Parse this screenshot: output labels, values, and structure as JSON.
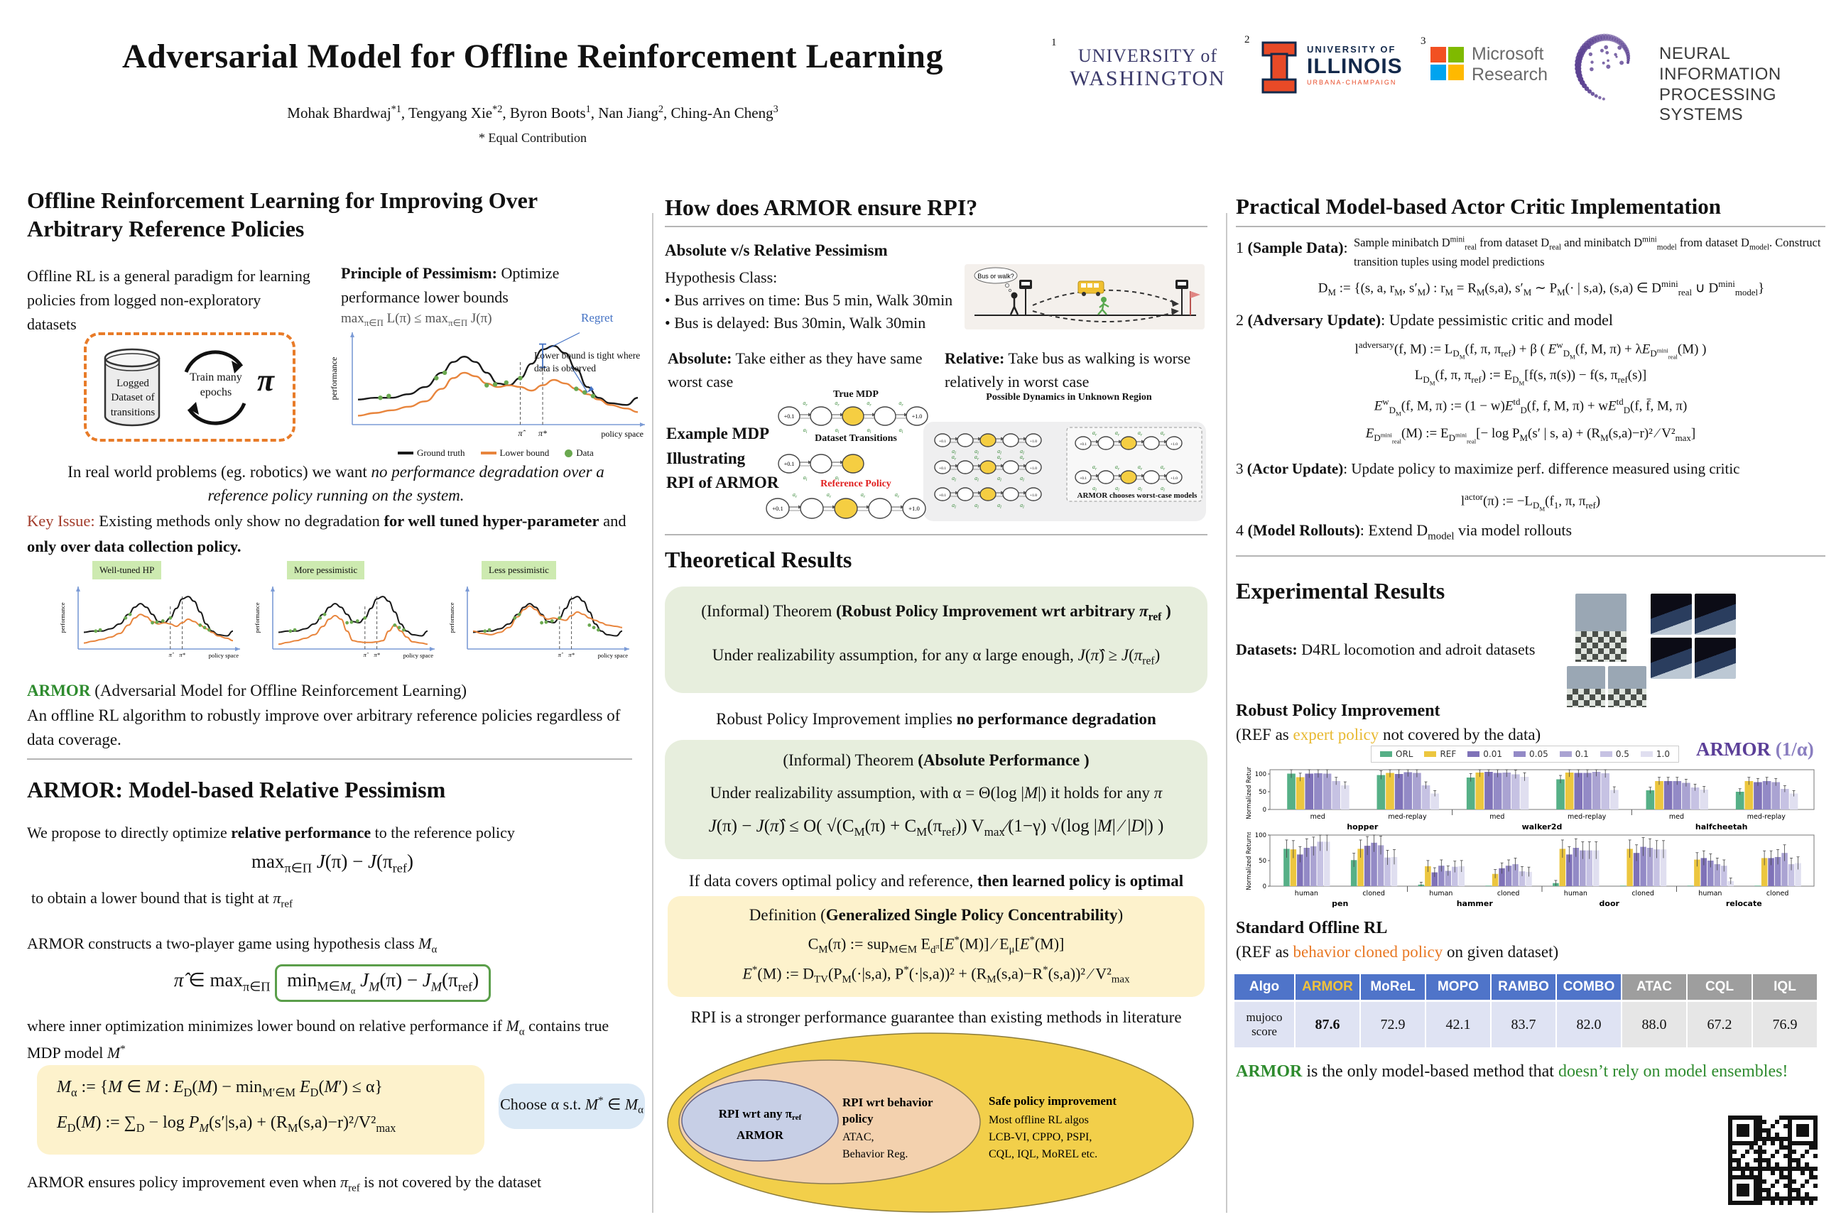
{
  "colors": {
    "armor_green": "#2e8b2e",
    "key_issue_red": "#a23b2a",
    "reference_policy_red": "#e02020",
    "expert_policy_gold": "#e8b931",
    "behavior_cloned_orange": "#e87722",
    "armor_purple": "#5b3f98",
    "table_header_blue": "#4f74c9",
    "table_header_gray": "#9e9e9e",
    "theorem_green_bg": "#e7eedd",
    "definition_yellow_bg": "#fdf2cc",
    "choose_blue_bg": "#dbe9f6",
    "dashed_box_orange": "#e87b28",
    "lower_bound_orange": "#e8853d",
    "data_dot_green": "#6aa84f"
  },
  "header": {
    "title": "Adversarial Model for Offline Reinforcement Learning",
    "authors_html": "Mohak Bhardwaj<sup>*1</sup>, Tengyang Xie<sup>*2</sup>, Byron Boots<sup>1</sup>, Nan Jiang<sup>2</sup>, Ching-An Cheng<sup>3</sup>",
    "equal": "* Equal Contribution"
  },
  "logos": {
    "uw_sup": "1",
    "uw1": "UNIVERSITY of",
    "uw2": "WASHINGTON",
    "il_sup": "2",
    "il1": "UNIVERSITY OF",
    "il2": "ILLINOIS",
    "il3": "URBANA-CHAMPAIGN",
    "ms_sup": "3",
    "ms1": "Microsoft",
    "ms2": "Research",
    "nips1": "NEURAL INFORMATION",
    "nips2": "PROCESSING SYSTEMS"
  },
  "left": {
    "heading1": "Offline Reinforcement Learning for Improving Over Arbitrary Reference Policies",
    "intro": "Offline RL is a general paradigm for learning policies from logged non-exploratory datasets",
    "box": {
      "cyl1": "Logged",
      "cyl2": "Dataset of",
      "cyl3": "transitions",
      "train1": "Train many",
      "train2": "epochs",
      "pi": "π"
    },
    "principle_b": "Principle of Pessimism:",
    "principle_r": " Optimize performance lower bounds",
    "principle_math_html": "max<sub>π∈Π</sub> L(π) ≤ max<sub>π∈Π</sub> J(π)",
    "regret": "Regret",
    "tight_note": "Lower bound is tight where data is observed",
    "plot": {
      "ylabel": "performance",
      "xlabel": "policy space",
      "xhat": "π̂",
      "xstar": "π*",
      "leg_gt": "Ground truth",
      "leg_lb": "Lower bound",
      "leg_data": "Data"
    },
    "realworld_html": "In real world problems (eg. robotics) we want <i>no performance degradation over a</i><br><i>reference policy running on the system.</i>",
    "key_label": "Key Issue:",
    "key_html": " Existing methods only show no degradation <b>for well tuned hyper-parameter</b> and <b>only over data collection policy.</b>",
    "mini_labels": [
      "Well-tuned HP",
      "More pessimistic",
      "Less pessimistic"
    ],
    "armor_name": "ARMOR",
    "armor_paren": " (Adversarial Model for Offline Reinforcement Learning)",
    "armor_desc": "An offline RL algorithm to robustly improve over arbitrary reference policies regardless of data coverage.",
    "heading2": "ARMOR: Model-based Relative Pessimism",
    "p1_html": "We propose to directly optimize <b>relative performance</b> to the reference policy",
    "eq1_html": "max<sub>π∈Π</sub> <i>J</i>(π) − <i>J</i>(π<sub>ref</sub>)",
    "p2_html": "to obtain a lower bound that is tight at <i>π</i><sub>ref</sub>",
    "p3_html": "ARMOR constructs a two-player game using hypothesis class <i>M</i><sub>α</sub>",
    "eq2_pre_html": "<i>π̂</i> ∈ max<sub>π∈Π</sub> ",
    "eq2_box_html": "min<sub>M∈<i>M</i><sub>α</sub></sub> <i>J<sub>M</sub></i>(π) − <i>J<sub>M</sub></i>(π<sub>ref</sub>)",
    "p4_html": "where inner optimization minimizes lower bound on relative performance if <i>M</i><sub>α</sub> contains true MDP model <i>M</i><sup>*</sup>",
    "ybox1_html": "<i>M</i><sub>α</sub> := {<i>M</i> ∈ <i>M</i> : <i>E</i><sub>D</sub>(<i>M</i>) − min<sub>M′∈M</sub> <i>E</i><sub>D</sub>(<i>M</i>′) ≤ α}",
    "ybox2_html": "<i>E</i><sub>D</sub>(<i>M</i>) := ∑<sub>D</sub> − log <i>P<sub>M</sub></i>(s′|s,a) + (R<sub>M</sub>(s,a)−r)²/V²<sub>max</sub>",
    "bluebox_html": "Choose α  s.t.  <i>M</i><sup>*</sup> ∈ <i>M</i><sub>α</sub>",
    "footer_html": "ARMOR ensures policy improvement even when <i>π</i><sub>ref</sub> is not covered by the dataset"
  },
  "middle": {
    "heading": "How does ARMOR ensure RPI?",
    "absrel": "Absolute v/s Relative Pessimism",
    "hyp": "Hypothesis Class:",
    "bullet": "•",
    "b1": "Bus arrives on time: Bus 5 min, Walk 30min",
    "b2": "Bus is delayed: Bus 30min, Walk 30min",
    "bus_thought": "Bus or walk?",
    "absolute_html": "<b>Absolute:</b> Take either as they have same worst case",
    "relative_html": "<b>Relative:</b> Take bus as walking is worse relatively in worst case",
    "example_html": "Example MDP<br>Illustrating<br>RPI of ARMOR",
    "true_mdp": "True MDP",
    "dataset_tr": "Dataset Transitions",
    "ref_pol": "Reference Policy",
    "possible": "Possible Dynamics in Unknown Region",
    "worst": "ARMOR chooses worst-case models",
    "r_low": "+0.1",
    "r_high": "+1.0",
    "act_r": "a_r",
    "act_l": "a_l",
    "theory_heading": "Theoretical Results",
    "t1_title_html": "(Informal) Theorem <b>(Robust Policy Improvement wrt arbitrary <i>π</i><sub>ref</sub> )</b>",
    "t1_body_html": "Under realizability assumption, for any α large enough,  <i>J</i>(<i>π̂</i>) ≥ <i>J</i>(<i>π</i><sub>ref</sub>)",
    "rpi_note_html": "Robust Policy Improvement implies <b>no performance degradation</b>",
    "t2_title_html": "(Informal) Theorem <b>(Absolute Performance )</b>",
    "t2_body_html": "Under realizability assumption, with α = Θ(log |<i>M</i>|) it holds for any <i>π</i>",
    "t2_eq_html": "<i>J</i>(π) − <i>J</i>(<i>π̂</i>) ≤ O( √(C<sub>M</sub>(π) + C<sub>M</sub>(π<sub>ref</sub>))  V<sub>max</sub>⁄(1−γ) √(log |<i>M</i>| ⁄ |<i>D</i>|) )",
    "cover_html": "If data covers optimal policy and reference, <b>then learned policy is optimal</b>",
    "def_title_html": "Definition (<b>Generalized Single Policy Concentrability</b>)",
    "def1_html": "C<sub>M</sub>(π) := sup<sub>M∈M</sub>  E<sub>d<sup>π</sup></sub>[<i>E</i><sup>*</sup>(M)] ⁄ E<sub>μ</sub>[<i>E</i><sup>*</sup>(M)]",
    "def2_html": "<i>E</i><sup>*</sup>(M) := D<sub>TV</sub>(P<sub>M</sub>(·|s,a), P<sup>*</sup>(·|s,a))² + (R<sub>M</sub>(s,a)−R<sup>*</sup>(s,a))² ⁄ V²<sub>max</sub>",
    "rpi_strong": "RPI is a stronger performance guarantee than existing methods in literature",
    "venn": {
      "inner1": "RPI wrt any π",
      "inner1sub": "ref",
      "inner2": "ARMOR",
      "mid1": "RPI wrt behavior",
      "mid2": "policy",
      "mid3": "ATAC,",
      "mid4": "Behavior Reg.",
      "out1": "Safe policy improvement",
      "out2": "Most offline RL algos",
      "out3": "LCB-VI, CPPO, PSPI,",
      "out4": "CQL, IQL, MoREL etc."
    }
  },
  "right": {
    "heading": "Practical Model-based Actor Critic Implementation",
    "s1_label_html": "1 <b>(Sample Data)</b>:",
    "s1_text_html": "Sample minibatch D<sup>mini</sup><sub>real</sub> from dataset D<sub>real</sub> and minibatch D<sup>mini</sup><sub>model</sub> from dataset D<sub>model</sub>. Construct transition tuples using model predictions",
    "s1_eq_html": "D<sub>M</sub> := {(s, a, r<sub>M</sub>, s′<sub>M</sub>) : r<sub>M</sub> = R<sub>M</sub>(s,a), s′<sub>M</sub> ∼ P<sub>M</sub>(· | s,a), (s,a) ∈ D<sup>mini</sup><sub>real</sub> ∪ D<sup>mini</sup><sub>model</sub>}",
    "s2_label_html": "2 <b>(Adversary Update)</b>: Update pessimistic critic and model",
    "s2_eq1_html": "l<sup>adversary</sup>(f, M) := L<sub>D<sub>M</sub></sub>(f, π, π<sub>ref</sub>) + β ( <i>E</i><sup>w</sup><sub>D<sub>M</sub></sub>(f, M, π) + λ<i>E</i><sub>D<sup>mini</sup><sub>real</sub></sub>(M) )",
    "s2_eq2_html": "L<sub>D<sub>M</sub></sub>(f, π, π<sub>ref</sub>) := E<sub>D<sub>M</sub></sub>[f(s, π(s)) − f(s, π<sub>ref</sub>(s)]",
    "s2_eq3_html": "<i>E</i><sup>w</sup><sub>D<sub>M</sub></sub>(f, M, π) := (1 − w)<i>E</i><sup>td</sup><sub>D</sub>(f, f, M, π) + w<i>E</i><sup>td</sup><sub>D</sub>(f, f̄, M, π)",
    "s2_eq4_html": "<i>E</i><sub>D<sup>mini</sup><sub>real</sub></sub>(M) := E<sub>D<sup>mini</sup><sub>real</sub></sub>[− log P<sub>M</sub>(s′ | s, a) + (R<sub>M</sub>(s,a)−r)² ⁄ V²<sub>max</sub>]",
    "s3_label_html": "3 <b>(Actor Update)</b>: Update policy to maximize perf. difference measured using critic",
    "s3_eq_html": "l<sup>actor</sup>(π) := −L<sub>D<sub>M</sub></sub>(f<sub>1</sub>, π, π<sub>ref</sub>)",
    "s4_label_html": "4 <b>(Model Rollouts)</b>: Extend D<sub>model</sub> via model rollouts",
    "exp_heading": "Experimental Results",
    "datasets_html": "<b>Datasets:</b> D4RL locomotion and adroit datasets",
    "rpi_title": "Robust Policy Improvement",
    "rpi_sub_pre": "(REF as ",
    "rpi_sub_hl": "expert policy",
    "rpi_sub_post": " not covered by the data)",
    "armor_alpha_html": "ARMOR <span class='lite'>(1/α)</span>",
    "std_title": "Standard Offline RL",
    "std_sub_pre": "(REF as ",
    "std_sub_hl": "behavior cloned policy",
    "std_sub_post": " on given dataset)",
    "table": {
      "header": [
        "Algo",
        "ARMOR",
        "MoReL",
        "MOPO",
        "RAMBO",
        "COMBO",
        "ATAC",
        "CQL",
        "IQL"
      ],
      "row_label": "mujoco score",
      "values": [
        "87.6",
        "72.9",
        "42.1",
        "83.7",
        "82.0",
        "88.0",
        "67.2",
        "76.9"
      ],
      "blue_cols": 6
    },
    "bottom_pre": "ARMOR",
    "bottom_mid": " is the only model-based method that ",
    "bottom_hl": "doesn’t rely on model ensembles!"
  },
  "chart_data": [
    {
      "type": "bar",
      "title": "Robust Policy Improvement (D4RL locomotion)",
      "ylabel": "Normalized Returns",
      "ylim": [
        0,
        112
      ],
      "yticks": [
        0,
        50,
        100
      ],
      "legend": [
        "ORL",
        "REF",
        "0.01",
        "0.05",
        "0.1",
        "0.5",
        "1.0"
      ],
      "legend_note": "ARMOR (1/α)",
      "colors": [
        "#56b087",
        "#ecc63f",
        "#7f72b8",
        "#938ac6",
        "#aaa3d2",
        "#c6c2e3",
        "#e0dff0"
      ],
      "groups": [
        {
          "env": "hopper",
          "subsets": [
            {
              "label": "med",
              "values": [
                101,
                91,
                101,
                102,
                101,
                80,
                68
              ]
            },
            {
              "label": "med-replay",
              "values": [
                97,
                103,
                100,
                105,
                103,
                68,
                45
              ]
            }
          ]
        },
        {
          "env": "walker2d",
          "subsets": [
            {
              "label": "med",
              "values": [
                90,
                104,
                106,
                103,
                104,
                99,
                92
              ]
            },
            {
              "label": "med-replay",
              "values": [
                85,
                104,
                103,
                103,
                106,
                102,
                55
              ]
            }
          ]
        },
        {
          "env": "halfcheetah",
          "subsets": [
            {
              "label": "med",
              "values": [
                54,
                80,
                80,
                80,
                75,
                62,
                56
              ]
            },
            {
              "label": "med-replay",
              "values": [
                50,
                80,
                77,
                80,
                77,
                58,
                45
              ]
            }
          ]
        }
      ]
    },
    {
      "type": "bar",
      "title": "Robust Policy Improvement (adroit)",
      "ylabel": "Normalized Returns",
      "ylim": [
        0,
        100
      ],
      "yticks": [
        0,
        50,
        100
      ],
      "legend": [
        "ORL",
        "REF",
        "0.01",
        "0.05",
        "0.1",
        "0.5",
        "1.0"
      ],
      "colors": [
        "#56b087",
        "#ecc63f",
        "#7f72b8",
        "#938ac6",
        "#aaa3d2",
        "#c6c2e3",
        "#e0dff0"
      ],
      "groups": [
        {
          "env": "pen",
          "subsets": [
            {
              "label": "human",
              "values": [
                73,
                72,
                62,
                75,
                78,
                87,
                87
              ]
            },
            {
              "label": "cloned",
              "values": [
                51,
                73,
                79,
                85,
                80,
                56,
                57
              ]
            }
          ]
        },
        {
          "env": "hammer",
          "subsets": [
            {
              "label": "human",
              "values": [
                3,
                39,
                27,
                40,
                30,
                38,
                39
              ]
            },
            {
              "label": "cloned",
              "values": [
                1,
                24,
                35,
                40,
                43,
                29,
                28
              ]
            }
          ]
        },
        {
          "env": "door",
          "subsets": [
            {
              "label": "human",
              "values": [
                6,
                73,
                62,
                75,
                70,
                70,
                70
              ]
            },
            {
              "label": "cloned",
              "values": [
                1,
                73,
                65,
                77,
                75,
                72,
                72
              ]
            }
          ]
        },
        {
          "env": "relocate",
          "subsets": [
            {
              "label": "human",
              "values": [
                1,
                52,
                55,
                50,
                43,
                40,
                10
              ]
            },
            {
              "label": "cloned",
              "values": [
                1,
                55,
                55,
                57,
                65,
                43,
                45
              ]
            }
          ]
        }
      ]
    }
  ]
}
